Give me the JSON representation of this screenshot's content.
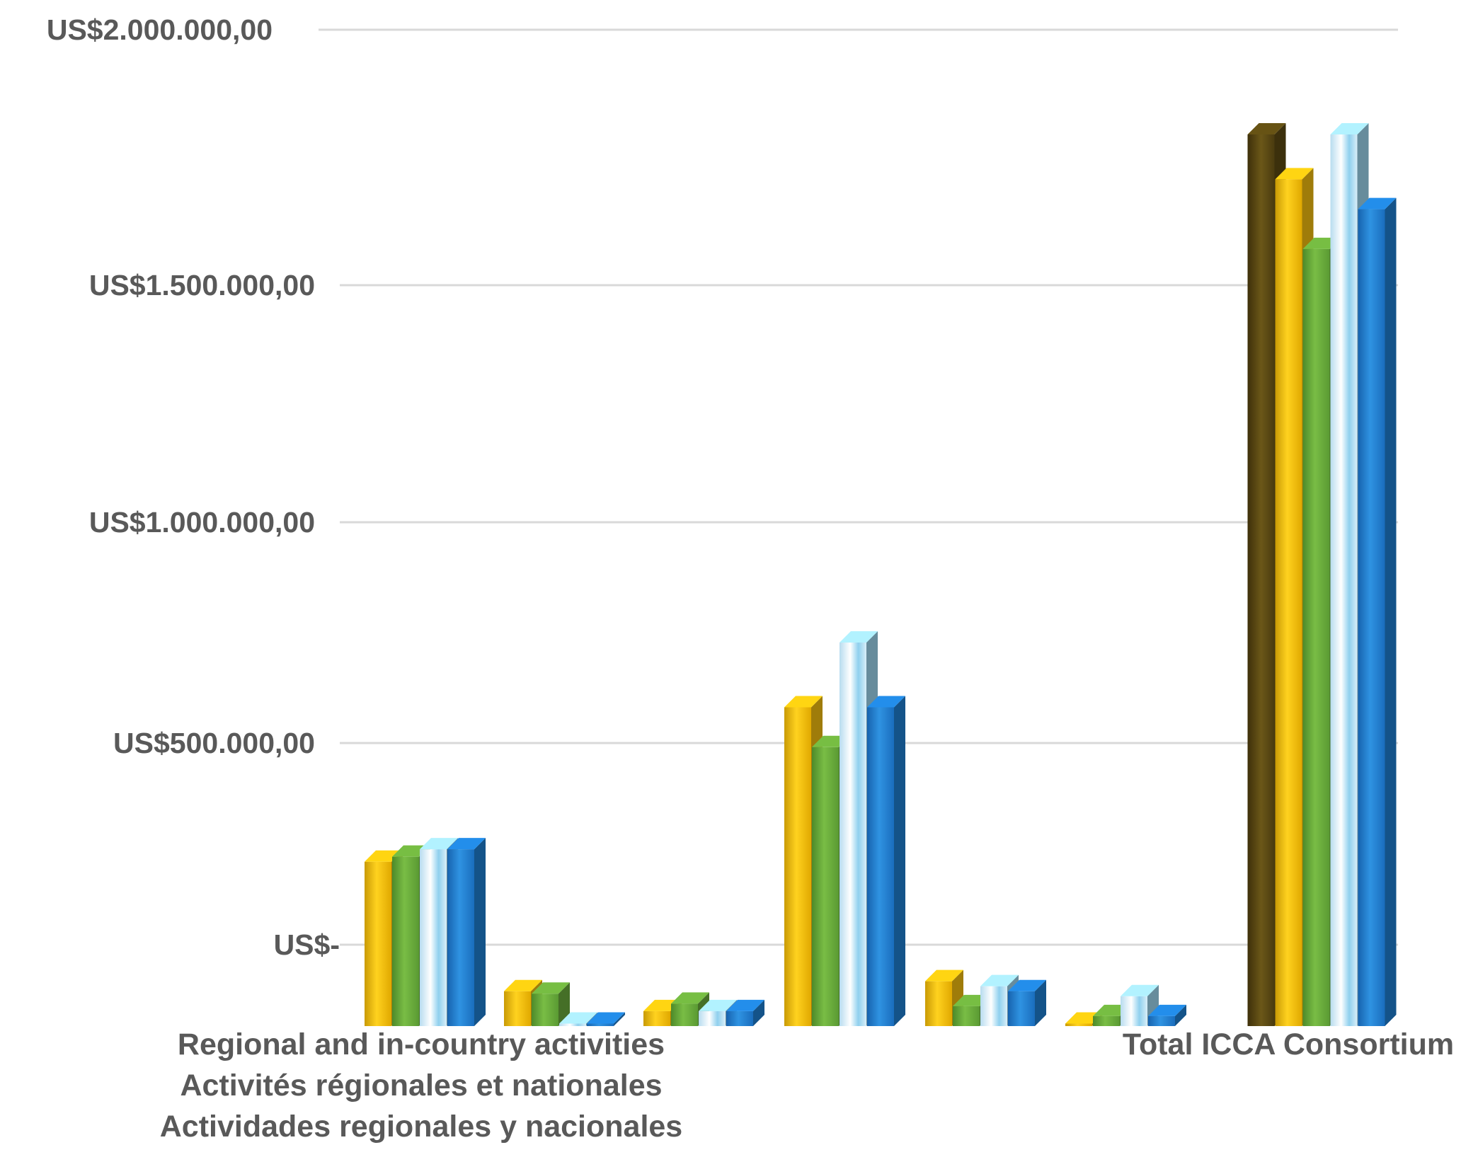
{
  "chart_data": {
    "type": "bar",
    "style": "3d-clustered-column",
    "y_tick_labels": [
      "US$-",
      "US$500.000,00",
      "US$1.000.000,00",
      "US$1.500.000,00",
      "US$2.000.000,00"
    ],
    "y_ticks": [
      0,
      500000,
      1000000,
      1500000,
      2000000
    ],
    "ylim": [
      0,
      2000000
    ],
    "grid": true,
    "legend": "none",
    "category_labels": [
      [
        "Regional and in-country activities",
        "Activités régionales et nationales",
        "Actividades regionales y nacionales"
      ],
      [],
      [],
      [],
      [],
      [],
      [
        "Total ICCA Consortium"
      ]
    ],
    "series": [
      {
        "values": [
          0,
          0,
          0,
          0,
          0,
          0,
          1790000
        ],
        "color": "#5c4a12"
      },
      {
        "values": [
          330000,
          70000,
          30000,
          640000,
          90000,
          5000,
          1700000
        ],
        "color": "#f5be10"
      },
      {
        "values": [
          340000,
          65000,
          45000,
          560000,
          40000,
          20000,
          1560000
        ],
        "color": "#6aaa3c"
      },
      {
        "values": [
          355000,
          5000,
          30000,
          770000,
          80000,
          60000,
          1790000
        ],
        "color": "#9fd8f0"
      },
      {
        "values": [
          355000,
          5000,
          30000,
          640000,
          70000,
          20000,
          1640000
        ],
        "color": "#1f7fd2"
      }
    ]
  }
}
